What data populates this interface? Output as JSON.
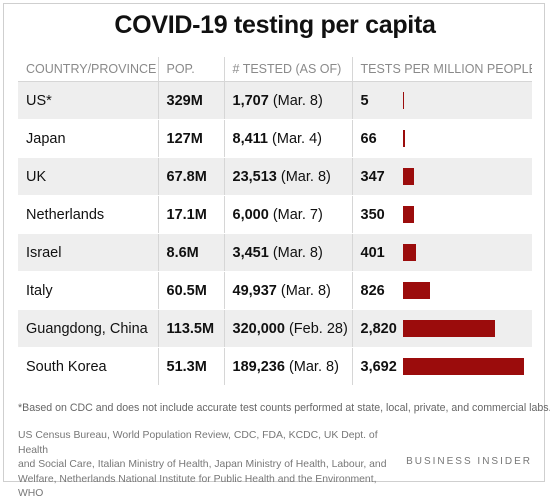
{
  "chart_data": {
    "type": "table",
    "title": "COVID-19 testing per capita",
    "columns": [
      "COUNTRY/PROVINCE",
      "POP.",
      "# TESTED (AS OF)",
      "TESTS PER MILLION PEOPLE"
    ],
    "rows": [
      {
        "country": "US*",
        "pop": "329M",
        "tested": "1,707",
        "as_of": "(Mar. 8)",
        "per_million_label": "5",
        "per_million": 5
      },
      {
        "country": "Japan",
        "pop": "127M",
        "tested": "8,411",
        "as_of": "(Mar. 4)",
        "per_million_label": "66",
        "per_million": 66
      },
      {
        "country": "UK",
        "pop": "67.8M",
        "tested": "23,513",
        "as_of": "(Mar. 8)",
        "per_million_label": "347",
        "per_million": 347
      },
      {
        "country": "Netherlands",
        "pop": "17.1M",
        "tested": "6,000",
        "as_of": "(Mar. 7)",
        "per_million_label": "350",
        "per_million": 350
      },
      {
        "country": "Israel",
        "pop": "8.6M",
        "tested": "3,451",
        "as_of": "(Mar. 8)",
        "per_million_label": "401",
        "per_million": 401
      },
      {
        "country": "Italy",
        "pop": "60.5M",
        "tested": "49,937",
        "as_of": "(Mar. 8)",
        "per_million_label": "826",
        "per_million": 826
      },
      {
        "country": "Guangdong, China",
        "pop": "113.5M",
        "tested": "320,000",
        "as_of": "(Feb. 28)",
        "per_million_label": "2,820",
        "per_million": 2820
      },
      {
        "country": "South Korea",
        "pop": "51.3M",
        "tested": "189,236",
        "as_of": "(Mar. 8)",
        "per_million_label": "3,692",
        "per_million": 3692
      }
    ],
    "bar_max": 3692,
    "bar_color": "#9b0c0c"
  },
  "footnote": "*Based on CDC and does not include accurate test counts performed at state, local, private, and commercial labs.",
  "source_lines": [
    "US Census Bureau, World Population Review, CDC, FDA, KCDC, UK Dept. of Health",
    "and Social Care, Italian Ministry of Health, Japan Ministry of Health, Labour, and",
    "Welfare, Netherlands National Institute for Public Health and the Environment, WHO"
  ],
  "brand": "BUSINESS INSIDER"
}
